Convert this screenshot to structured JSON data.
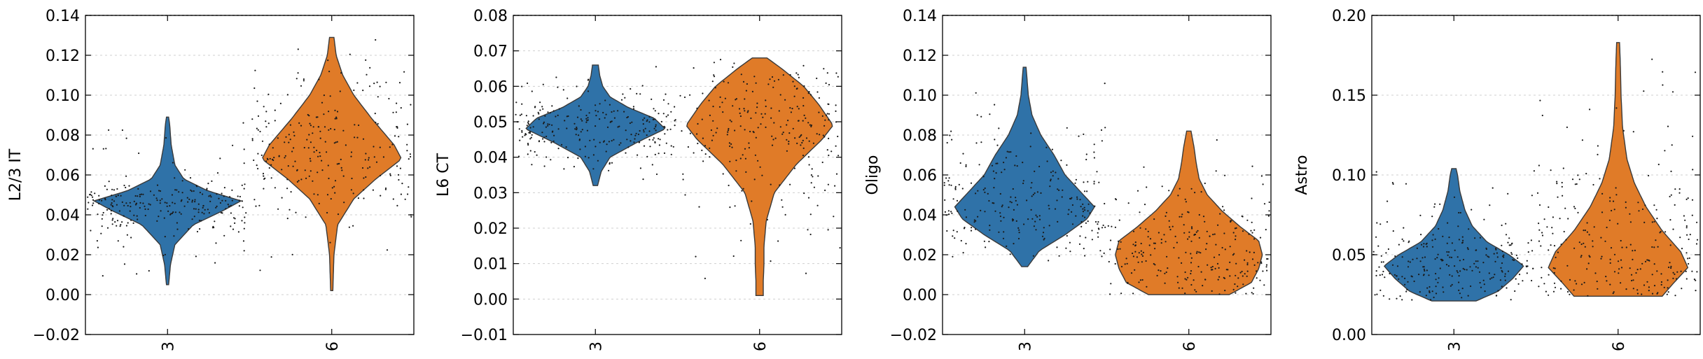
{
  "chart_data": [
    {
      "type": "violin",
      "ylabel": "L2/3 IT",
      "ylim": [
        -0.02,
        0.14
      ],
      "yticks": [
        -0.02,
        0.0,
        0.02,
        0.04,
        0.06,
        0.08,
        0.1,
        0.12,
        0.14
      ],
      "ytick_labels": [
        "−0.02",
        "0.00",
        "0.02",
        "0.04",
        "0.06",
        "0.08",
        "0.10",
        "0.12",
        "0.14"
      ],
      "categories": [
        "3",
        "6"
      ],
      "grid": true,
      "series": [
        {
          "category": "3",
          "color": "#2f72a8",
          "min": 0.005,
          "max": 0.089,
          "profile": [
            [
              0.005,
              0.015
            ],
            [
              0.015,
              0.04
            ],
            [
              0.025,
              0.1
            ],
            [
              0.035,
              0.35
            ],
            [
              0.042,
              0.75
            ],
            [
              0.047,
              1.0
            ],
            [
              0.052,
              0.55
            ],
            [
              0.058,
              0.22
            ],
            [
              0.065,
              0.1
            ],
            [
              0.075,
              0.05
            ],
            [
              0.085,
              0.03
            ],
            [
              0.089,
              0.015
            ]
          ]
        },
        {
          "category": "6",
          "color": "#e07b28",
          "min": 0.002,
          "max": 0.129,
          "profile": [
            [
              0.002,
              0.015
            ],
            [
              0.02,
              0.03
            ],
            [
              0.035,
              0.08
            ],
            [
              0.048,
              0.3
            ],
            [
              0.058,
              0.6
            ],
            [
              0.068,
              0.95
            ],
            [
              0.075,
              0.85
            ],
            [
              0.088,
              0.55
            ],
            [
              0.1,
              0.3
            ],
            [
              0.11,
              0.15
            ],
            [
              0.12,
              0.06
            ],
            [
              0.129,
              0.03
            ]
          ]
        }
      ]
    },
    {
      "type": "violin",
      "ylabel": "L6 CT",
      "ylim": [
        -0.01,
        0.08
      ],
      "yticks": [
        -0.01,
        0.0,
        0.01,
        0.02,
        0.03,
        0.04,
        0.05,
        0.06,
        0.07,
        0.08
      ],
      "ytick_labels": [
        "−0.01",
        "0.00",
        "0.01",
        "0.02",
        "0.03",
        "0.04",
        "0.05",
        "0.06",
        "0.07",
        "0.08"
      ],
      "categories": [
        "3",
        "6"
      ],
      "grid": true,
      "series": [
        {
          "category": "3",
          "color": "#2f72a8",
          "min": 0.032,
          "max": 0.066,
          "profile": [
            [
              0.032,
              0.03
            ],
            [
              0.036,
              0.08
            ],
            [
              0.04,
              0.2
            ],
            [
              0.044,
              0.55
            ],
            [
              0.048,
              0.95
            ],
            [
              0.051,
              0.8
            ],
            [
              0.054,
              0.45
            ],
            [
              0.057,
              0.2
            ],
            [
              0.06,
              0.1
            ],
            [
              0.063,
              0.06
            ],
            [
              0.066,
              0.04
            ]
          ]
        },
        {
          "category": "6",
          "color": "#e07b28",
          "min": 0.001,
          "max": 0.068,
          "profile": [
            [
              0.001,
              0.05
            ],
            [
              0.005,
              0.05
            ],
            [
              0.01,
              0.06
            ],
            [
              0.015,
              0.06
            ],
            [
              0.022,
              0.09
            ],
            [
              0.03,
              0.2
            ],
            [
              0.038,
              0.5
            ],
            [
              0.045,
              0.85
            ],
            [
              0.049,
              1.0
            ],
            [
              0.055,
              0.8
            ],
            [
              0.06,
              0.6
            ],
            [
              0.065,
              0.3
            ],
            [
              0.068,
              0.1
            ]
          ]
        }
      ]
    },
    {
      "type": "violin",
      "ylabel": "Oligo",
      "ylim": [
        -0.02,
        0.14
      ],
      "yticks": [
        -0.02,
        0.0,
        0.02,
        0.04,
        0.06,
        0.08,
        0.1,
        0.12,
        0.14
      ],
      "ytick_labels": [
        "−0.02",
        "0.00",
        "0.02",
        "0.04",
        "0.06",
        "0.08",
        "0.10",
        "0.12",
        "0.14"
      ],
      "categories": [
        "3",
        "6"
      ],
      "grid": true,
      "series": [
        {
          "category": "3",
          "color": "#2f72a8",
          "min": 0.014,
          "max": 0.114,
          "profile": [
            [
              0.014,
              0.04
            ],
            [
              0.022,
              0.2
            ],
            [
              0.03,
              0.55
            ],
            [
              0.038,
              0.85
            ],
            [
              0.044,
              0.95
            ],
            [
              0.05,
              0.8
            ],
            [
              0.06,
              0.55
            ],
            [
              0.07,
              0.4
            ],
            [
              0.08,
              0.22
            ],
            [
              0.09,
              0.1
            ],
            [
              0.1,
              0.05
            ],
            [
              0.114,
              0.02
            ]
          ]
        },
        {
          "category": "6",
          "color": "#e07b28",
          "min": 0.0,
          "max": 0.082,
          "profile": [
            [
              0.0,
              0.55
            ],
            [
              0.006,
              0.85
            ],
            [
              0.013,
              0.95
            ],
            [
              0.02,
              1.0
            ],
            [
              0.027,
              0.95
            ],
            [
              0.034,
              0.7
            ],
            [
              0.042,
              0.45
            ],
            [
              0.05,
              0.25
            ],
            [
              0.058,
              0.14
            ],
            [
              0.066,
              0.1
            ],
            [
              0.074,
              0.07
            ],
            [
              0.082,
              0.03
            ]
          ]
        }
      ]
    },
    {
      "type": "violin",
      "ylabel": "Astro",
      "ylim": [
        0.0,
        0.2
      ],
      "yticks": [
        0.0,
        0.05,
        0.1,
        0.15,
        0.2
      ],
      "ytick_labels": [
        "0.00",
        "0.05",
        "0.10",
        "0.15",
        "0.20"
      ],
      "categories": [
        "3",
        "6"
      ],
      "grid": true,
      "series": [
        {
          "category": "3",
          "color": "#2f72a8",
          "min": 0.021,
          "max": 0.104,
          "profile": [
            [
              0.021,
              0.3
            ],
            [
              0.027,
              0.6
            ],
            [
              0.035,
              0.8
            ],
            [
              0.043,
              0.95
            ],
            [
              0.05,
              0.75
            ],
            [
              0.058,
              0.45
            ],
            [
              0.068,
              0.25
            ],
            [
              0.078,
              0.15
            ],
            [
              0.09,
              0.08
            ],
            [
              0.1,
              0.05
            ],
            [
              0.104,
              0.03
            ]
          ]
        },
        {
          "category": "6",
          "color": "#e07b28",
          "min": 0.024,
          "max": 0.183,
          "profile": [
            [
              0.024,
              0.6
            ],
            [
              0.032,
              0.75
            ],
            [
              0.042,
              0.95
            ],
            [
              0.052,
              0.85
            ],
            [
              0.065,
              0.6
            ],
            [
              0.08,
              0.38
            ],
            [
              0.095,
              0.22
            ],
            [
              0.11,
              0.12
            ],
            [
              0.13,
              0.06
            ],
            [
              0.15,
              0.04
            ],
            [
              0.17,
              0.03
            ],
            [
              0.183,
              0.02
            ]
          ]
        }
      ]
    }
  ]
}
